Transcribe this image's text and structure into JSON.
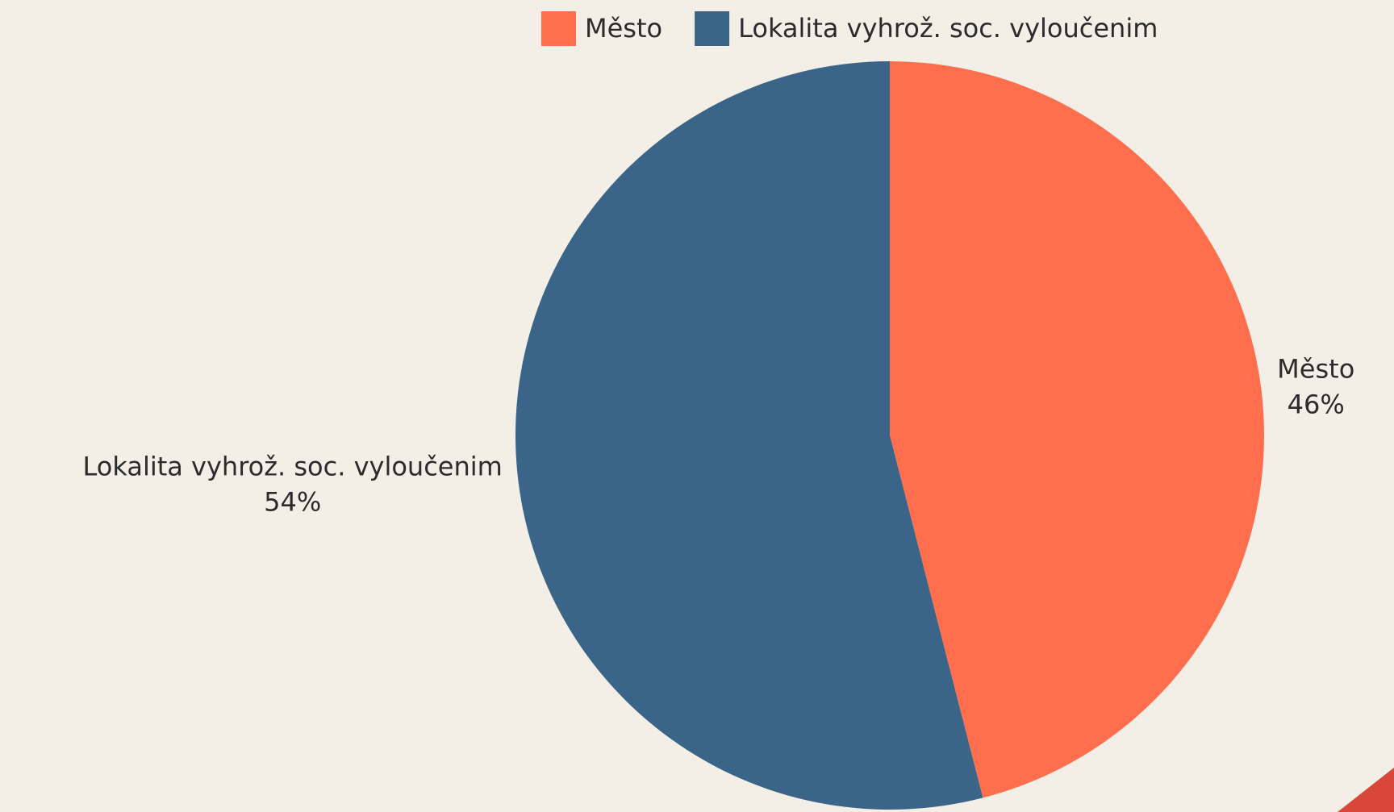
{
  "chart_data": {
    "type": "pie",
    "categories": [
      "Město",
      "Lokalita vyhrož. soc. vyloučenim"
    ],
    "values": [
      46,
      54
    ],
    "value_labels": [
      "46%",
      "54%"
    ],
    "colors": [
      "#ff6f4e",
      "#3a6488"
    ],
    "legend": "top"
  }
}
